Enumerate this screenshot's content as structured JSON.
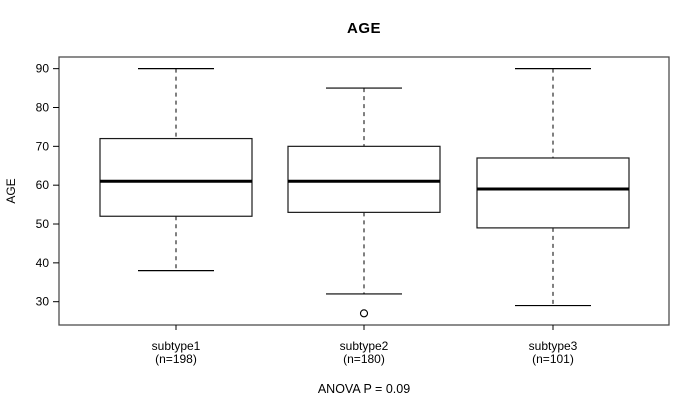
{
  "chart_data": {
    "type": "boxplot",
    "title": "AGE",
    "ylabel": "AGE",
    "xlabel": "",
    "annotation": "ANOVA P = 0.09",
    "yticks": [
      30,
      40,
      50,
      60,
      70,
      80,
      90
    ],
    "ylim": [
      24,
      93
    ],
    "grid": false,
    "groups": [
      {
        "label": "subtype1",
        "sublabel": "(n=198)",
        "whisker_low": 38,
        "q1": 52,
        "median": 61,
        "q3": 72,
        "whisker_high": 90,
        "outliers": []
      },
      {
        "label": "subtype2",
        "sublabel": "(n=180)",
        "whisker_low": 32,
        "q1": 53,
        "median": 61,
        "q3": 70,
        "whisker_high": 85,
        "outliers": [
          27
        ]
      },
      {
        "label": "subtype3",
        "sublabel": "(n=101)",
        "whisker_low": 29,
        "q1": 49,
        "median": 59,
        "q3": 67,
        "whisker_high": 90,
        "outliers": []
      }
    ],
    "colors": {
      "line": "#000000",
      "border": "#4d4d4d",
      "box_fill": "#ffffff",
      "background": "#ffffff"
    }
  }
}
